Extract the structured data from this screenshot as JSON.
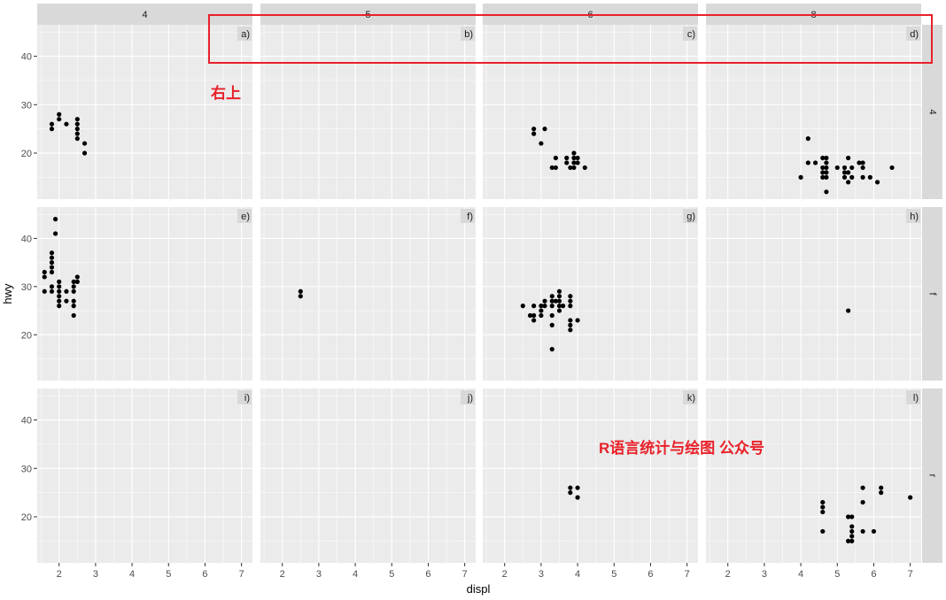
{
  "colors": {
    "panel_bg": "#EBEBEB",
    "strip_bg": "#D9D9D9",
    "grid_major": "#FFFFFF",
    "point": "#000000",
    "annotation": "#E8212A"
  },
  "annotations": {
    "corner_label": "右上",
    "watermark": "R语言统计与绘图 公众号"
  },
  "chart_data": {
    "type": "scatter",
    "facet": "grid",
    "xlabel": "displ",
    "ylabel": "hwy",
    "xlim": [
      1.4,
      7.3
    ],
    "ylim": [
      10.5,
      46.5
    ],
    "x_ticks": [
      2,
      3,
      4,
      5,
      6,
      7
    ],
    "y_ticks": [
      20,
      30,
      40
    ],
    "col_facets": [
      "4",
      "5",
      "6",
      "8"
    ],
    "row_facets": [
      "4",
      "f",
      "r"
    ],
    "tag_position": "top-right",
    "grid": true,
    "panels": [
      {
        "row": "4",
        "col": "4",
        "tag": "a)",
        "points": [
          [
            1.8,
            26
          ],
          [
            1.8,
            25
          ],
          [
            2.0,
            28
          ],
          [
            2.0,
            27
          ],
          [
            2.2,
            26
          ],
          [
            2.5,
            27
          ],
          [
            2.5,
            26
          ],
          [
            2.5,
            25
          ],
          [
            2.5,
            24
          ],
          [
            2.5,
            23
          ],
          [
            2.7,
            22
          ],
          [
            2.7,
            20
          ]
        ]
      },
      {
        "row": "4",
        "col": "5",
        "tag": "b)",
        "points": []
      },
      {
        "row": "4",
        "col": "6",
        "tag": "c)",
        "points": [
          [
            2.8,
            25
          ],
          [
            2.8,
            24
          ],
          [
            3.0,
            22
          ],
          [
            3.1,
            25
          ],
          [
            3.3,
            17
          ],
          [
            3.4,
            19
          ],
          [
            3.4,
            17
          ],
          [
            3.7,
            19
          ],
          [
            3.7,
            18
          ],
          [
            3.8,
            17
          ],
          [
            3.9,
            20
          ],
          [
            3.9,
            19
          ],
          [
            3.9,
            18
          ],
          [
            3.9,
            17
          ],
          [
            4.0,
            19
          ],
          [
            4.0,
            18
          ],
          [
            4.2,
            17
          ]
        ]
      },
      {
        "row": "4",
        "col": "8",
        "tag": "d)",
        "points": [
          [
            4.0,
            15
          ],
          [
            4.2,
            23
          ],
          [
            4.2,
            18
          ],
          [
            4.4,
            18
          ],
          [
            4.6,
            19
          ],
          [
            4.6,
            17
          ],
          [
            4.6,
            16
          ],
          [
            4.6,
            15
          ],
          [
            4.7,
            19
          ],
          [
            4.7,
            18
          ],
          [
            4.7,
            17
          ],
          [
            4.7,
            16
          ],
          [
            4.7,
            15
          ],
          [
            4.7,
            12
          ],
          [
            5.0,
            17
          ],
          [
            5.2,
            17
          ],
          [
            5.2,
            16
          ],
          [
            5.2,
            15
          ],
          [
            5.3,
            19
          ],
          [
            5.3,
            16
          ],
          [
            5.3,
            14
          ],
          [
            5.4,
            17
          ],
          [
            5.4,
            15
          ],
          [
            5.6,
            18
          ],
          [
            5.7,
            18
          ],
          [
            5.7,
            17
          ],
          [
            5.7,
            15
          ],
          [
            5.9,
            15
          ],
          [
            6.1,
            14
          ],
          [
            6.5,
            17
          ]
        ]
      },
      {
        "row": "f",
        "col": "4",
        "tag": "e)",
        "points": [
          [
            1.6,
            33
          ],
          [
            1.6,
            32
          ],
          [
            1.6,
            29
          ],
          [
            1.8,
            37
          ],
          [
            1.8,
            36
          ],
          [
            1.8,
            35
          ],
          [
            1.8,
            34
          ],
          [
            1.8,
            33
          ],
          [
            1.8,
            30
          ],
          [
            1.8,
            29
          ],
          [
            1.9,
            44
          ],
          [
            1.9,
            41
          ],
          [
            2.0,
            31
          ],
          [
            2.0,
            30
          ],
          [
            2.0,
            29
          ],
          [
            2.0,
            28
          ],
          [
            2.0,
            27
          ],
          [
            2.0,
            26
          ],
          [
            2.2,
            29
          ],
          [
            2.2,
            27
          ],
          [
            2.4,
            31
          ],
          [
            2.4,
            30
          ],
          [
            2.4,
            29
          ],
          [
            2.4,
            27
          ],
          [
            2.4,
            26
          ],
          [
            2.4,
            24
          ],
          [
            2.5,
            32
          ],
          [
            2.5,
            31
          ]
        ]
      },
      {
        "row": "f",
        "col": "5",
        "tag": "f)",
        "points": [
          [
            2.5,
            29
          ],
          [
            2.5,
            28
          ]
        ]
      },
      {
        "row": "f",
        "col": "6",
        "tag": "g)",
        "points": [
          [
            2.5,
            26
          ],
          [
            2.7,
            24
          ],
          [
            2.8,
            26
          ],
          [
            2.8,
            24
          ],
          [
            2.8,
            23
          ],
          [
            3.0,
            26
          ],
          [
            3.0,
            25
          ],
          [
            3.0,
            24
          ],
          [
            3.1,
            27
          ],
          [
            3.1,
            26
          ],
          [
            3.3,
            28
          ],
          [
            3.3,
            27
          ],
          [
            3.3,
            26
          ],
          [
            3.3,
            24
          ],
          [
            3.3,
            22
          ],
          [
            3.3,
            17
          ],
          [
            3.4,
            27
          ],
          [
            3.5,
            29
          ],
          [
            3.5,
            28
          ],
          [
            3.5,
            27
          ],
          [
            3.5,
            26
          ],
          [
            3.5,
            25
          ],
          [
            3.6,
            26
          ],
          [
            3.8,
            28
          ],
          [
            3.8,
            27
          ],
          [
            3.8,
            26
          ],
          [
            3.8,
            23
          ],
          [
            3.8,
            22
          ],
          [
            3.8,
            21
          ],
          [
            4.0,
            23
          ]
        ]
      },
      {
        "row": "f",
        "col": "8",
        "tag": "h)",
        "points": [
          [
            5.3,
            25
          ]
        ]
      },
      {
        "row": "r",
        "col": "4",
        "tag": "i)",
        "points": []
      },
      {
        "row": "r",
        "col": "5",
        "tag": "j)",
        "points": []
      },
      {
        "row": "r",
        "col": "6",
        "tag": "k)",
        "points": [
          [
            3.8,
            26
          ],
          [
            3.8,
            25
          ],
          [
            4.0,
            26
          ],
          [
            4.0,
            24
          ]
        ]
      },
      {
        "row": "r",
        "col": "8",
        "tag": "l)",
        "points": [
          [
            4.6,
            23
          ],
          [
            4.6,
            22
          ],
          [
            4.6,
            21
          ],
          [
            4.6,
            17
          ],
          [
            5.3,
            20
          ],
          [
            5.3,
            15
          ],
          [
            5.4,
            20
          ],
          [
            5.4,
            18
          ],
          [
            5.4,
            17
          ],
          [
            5.4,
            16
          ],
          [
            5.4,
            15
          ],
          [
            5.7,
            26
          ],
          [
            5.7,
            23
          ],
          [
            5.7,
            17
          ],
          [
            6.0,
            17
          ],
          [
            6.2,
            26
          ],
          [
            6.2,
            25
          ],
          [
            7.0,
            24
          ]
        ]
      }
    ]
  }
}
